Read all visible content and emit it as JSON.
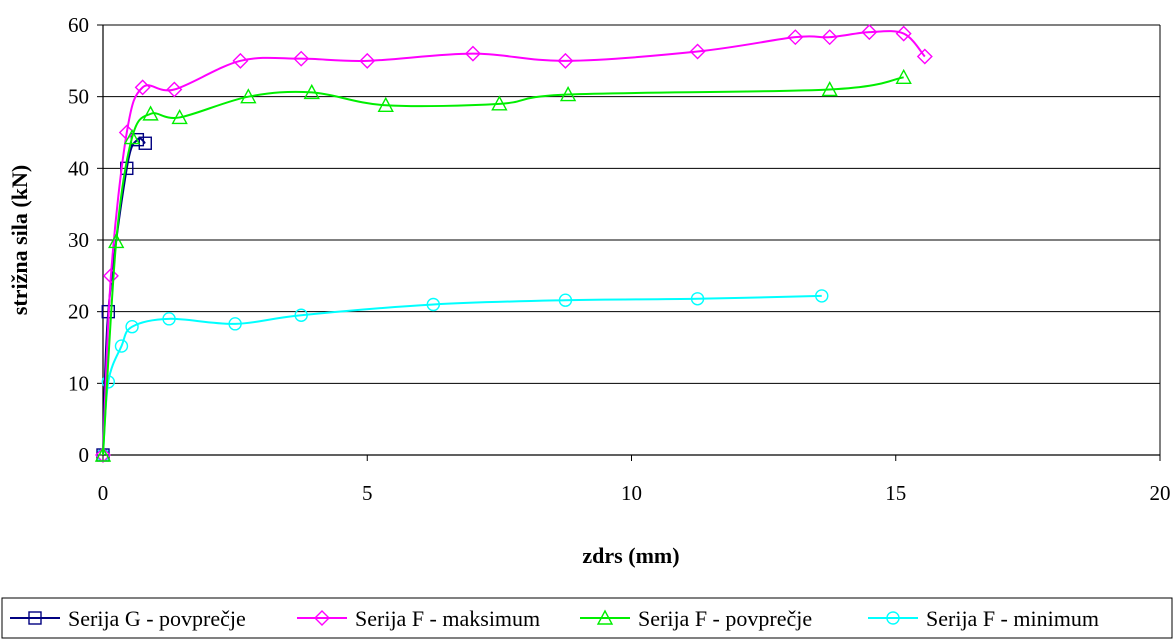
{
  "chart_data": {
    "type": "scatter",
    "xlabel": "zdrs (mm)",
    "ylabel": "strižna sila (kN)",
    "xlim": [
      0,
      20
    ],
    "ylim": [
      0,
      60
    ],
    "xticks": [
      "0",
      "5",
      "10",
      "15",
      "20"
    ],
    "yticks": [
      "0",
      "10",
      "20",
      "30",
      "40",
      "50",
      "60"
    ],
    "grid": "horizontal",
    "legend_position": "bottom",
    "series": [
      {
        "name": "Serija G - povprečje",
        "color": "#000080",
        "marker": "square",
        "x": [
          0,
          0.1,
          0.45,
          0.65,
          0.8
        ],
        "y": [
          0,
          20,
          40,
          44,
          43.5
        ]
      },
      {
        "name": "Serija F - maksimum",
        "color": "#ff00ff",
        "marker": "diamond",
        "x": [
          0,
          0.15,
          0.45,
          0.75,
          1.35,
          2.6,
          3.75,
          5.0,
          7.0,
          8.75,
          11.25,
          13.1,
          13.75,
          14.5,
          15.15,
          15.55
        ],
        "y": [
          0,
          25,
          45,
          51.3,
          51,
          55,
          55.3,
          55,
          56,
          55,
          56.3,
          58.3,
          58.3,
          59,
          58.8,
          55.6
        ]
      },
      {
        "name": "Serija F - povprečje",
        "color": "#00ee00",
        "marker": "triangle",
        "x": [
          0,
          0.25,
          0.55,
          0.9,
          1.45,
          2.75,
          3.95,
          5.35,
          7.5,
          8.8,
          13.75,
          15.15
        ],
        "y": [
          0,
          29.8,
          44.3,
          47.6,
          47.1,
          50,
          50.6,
          48.8,
          49,
          50.3,
          51,
          52.7
        ]
      },
      {
        "name": "Serija F - minimum",
        "color": "#00ffff",
        "marker": "circle",
        "x": [
          0,
          0.1,
          0.35,
          0.55,
          1.25,
          2.5,
          3.75,
          6.25,
          8.75,
          11.25,
          13.6
        ],
        "y": [
          0,
          10.2,
          15.2,
          17.9,
          19,
          18.3,
          19.5,
          21,
          21.6,
          21.8,
          22.2
        ]
      }
    ]
  }
}
